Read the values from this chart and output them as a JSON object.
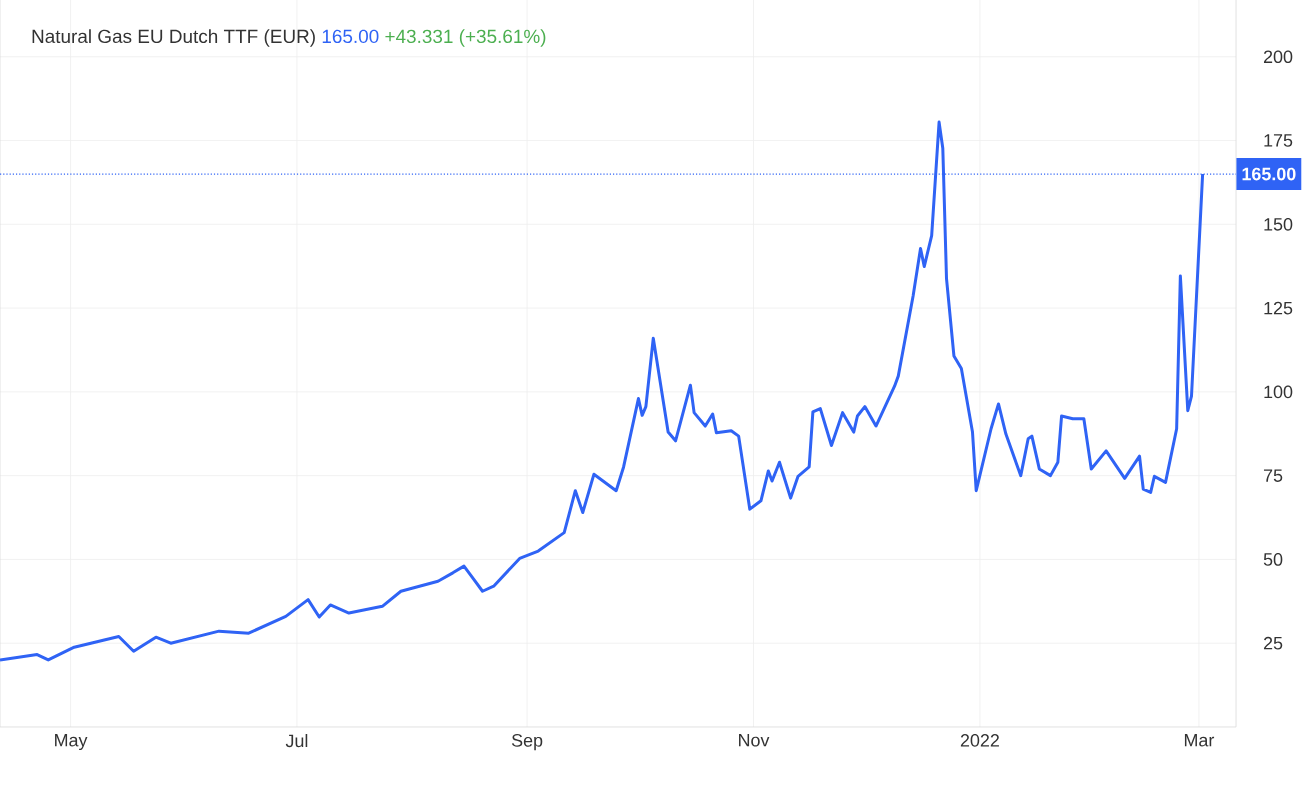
{
  "chart_data": {
    "type": "line",
    "title": "Natural Gas EU Dutch TTF (EUR)",
    "annotations": [
      "165.00",
      "+43.331 (+35.61%)"
    ],
    "x": [
      "2021-04-12",
      "2021-04-22",
      "2021-04-25",
      "2021-05-02",
      "2021-05-14",
      "2021-05-18",
      "2021-05-24",
      "2021-05-28",
      "2021-06-10",
      "2021-06-18",
      "2021-06-28",
      "2021-07-04",
      "2021-07-07",
      "2021-07-10",
      "2021-07-15",
      "2021-07-24",
      "2021-07-29",
      "2021-08-08",
      "2021-08-12",
      "2021-08-15",
      "2021-08-17",
      "2021-08-20",
      "2021-08-23",
      "2021-08-30",
      "2021-09-04",
      "2021-09-11",
      "2021-09-14",
      "2021-09-16",
      "2021-09-19",
      "2021-09-25",
      "2021-09-27",
      "2021-10-01",
      "2021-10-02",
      "2021-10-03",
      "2021-10-05",
      "2021-10-09",
      "2021-10-11",
      "2021-10-15",
      "2021-10-16",
      "2021-10-19",
      "2021-10-21",
      "2021-10-22",
      "2021-10-26",
      "2021-10-28",
      "2021-10-31",
      "2021-11-03",
      "2021-11-05",
      "2021-11-06",
      "2021-11-08",
      "2021-11-11",
      "2021-11-13",
      "2021-11-16",
      "2021-11-17",
      "2021-11-19",
      "2021-11-22",
      "2021-11-25",
      "2021-11-28",
      "2021-11-29",
      "2021-12-01",
      "2021-12-04",
      "2021-12-09",
      "2021-12-10",
      "2021-12-14",
      "2021-12-16",
      "2021-12-17",
      "2021-12-19",
      "2021-12-21",
      "2021-12-22",
      "2021-12-23",
      "2021-12-25",
      "2021-12-27",
      "2021-12-30",
      "2021-12-31",
      "2022-01-04",
      "2022-01-06",
      "2022-01-08",
      "2022-01-12",
      "2022-01-14",
      "2022-01-15",
      "2022-01-17",
      "2022-01-20",
      "2022-01-22",
      "2022-01-23",
      "2022-01-26",
      "2022-01-29",
      "2022-01-31",
      "2022-02-04",
      "2022-02-09",
      "2022-02-13",
      "2022-02-14",
      "2022-02-16",
      "2022-02-17",
      "2022-02-20",
      "2022-02-23",
      "2022-02-24",
      "2022-02-26",
      "2022-02-27",
      "2022-03-02"
    ],
    "series": [
      {
        "color": "#2f63f5",
        "values": [
          20,
          21.6,
          20,
          23.8,
          27,
          22.6,
          26.8,
          25,
          28.6,
          28,
          33,
          38,
          32.8,
          36.4,
          34,
          36,
          40.5,
          43.5,
          46,
          48,
          45,
          40.5,
          42,
          50.3,
          52.5,
          58,
          70.5,
          64,
          75.4,
          70.5,
          77.6,
          98,
          93,
          95.6,
          116,
          88,
          85.4,
          102,
          93.8,
          89.8,
          93.4,
          87.8,
          88.4,
          86.8,
          65,
          67.5,
          76.4,
          73.4,
          79,
          68.3,
          74.8,
          77.6,
          94,
          95,
          84,
          93.8,
          88,
          92.8,
          95.6,
          89.8,
          101.7,
          104.7,
          128.6,
          142.8,
          137.4,
          146.6,
          180.5,
          172.7,
          133.8,
          110.7,
          107,
          88,
          70.5,
          89,
          96.4,
          87.4,
          75,
          86,
          86.8,
          77,
          75,
          79,
          92.8,
          92,
          92,
          77,
          82.4,
          74.2,
          80.8,
          71,
          70,
          74.8,
          73,
          89,
          134.6,
          94.4,
          98.7,
          165
        ]
      }
    ],
    "xlim": [
      "2021-04-12",
      "2022-03-11"
    ],
    "xticks": [
      {
        "value": "2021-05-01",
        "label": "May"
      },
      {
        "value": "2021-07-01",
        "label": "Jul"
      },
      {
        "value": "2021-09-01",
        "label": "Sep"
      },
      {
        "value": "2021-11-01",
        "label": "Nov"
      },
      {
        "value": "2022-01-01",
        "label": "2022"
      },
      {
        "value": "2022-03-01",
        "label": "Mar"
      }
    ],
    "ylim": [
      0,
      225
    ],
    "yticks": [
      25,
      50,
      75,
      100,
      125,
      150,
      175,
      200
    ],
    "grid": true,
    "line_style": "solid",
    "ref_lines": [
      {
        "axis": "y",
        "value": 165,
        "label": "165.00",
        "color": "#2f63f5",
        "line_style": "dotted"
      }
    ]
  }
}
